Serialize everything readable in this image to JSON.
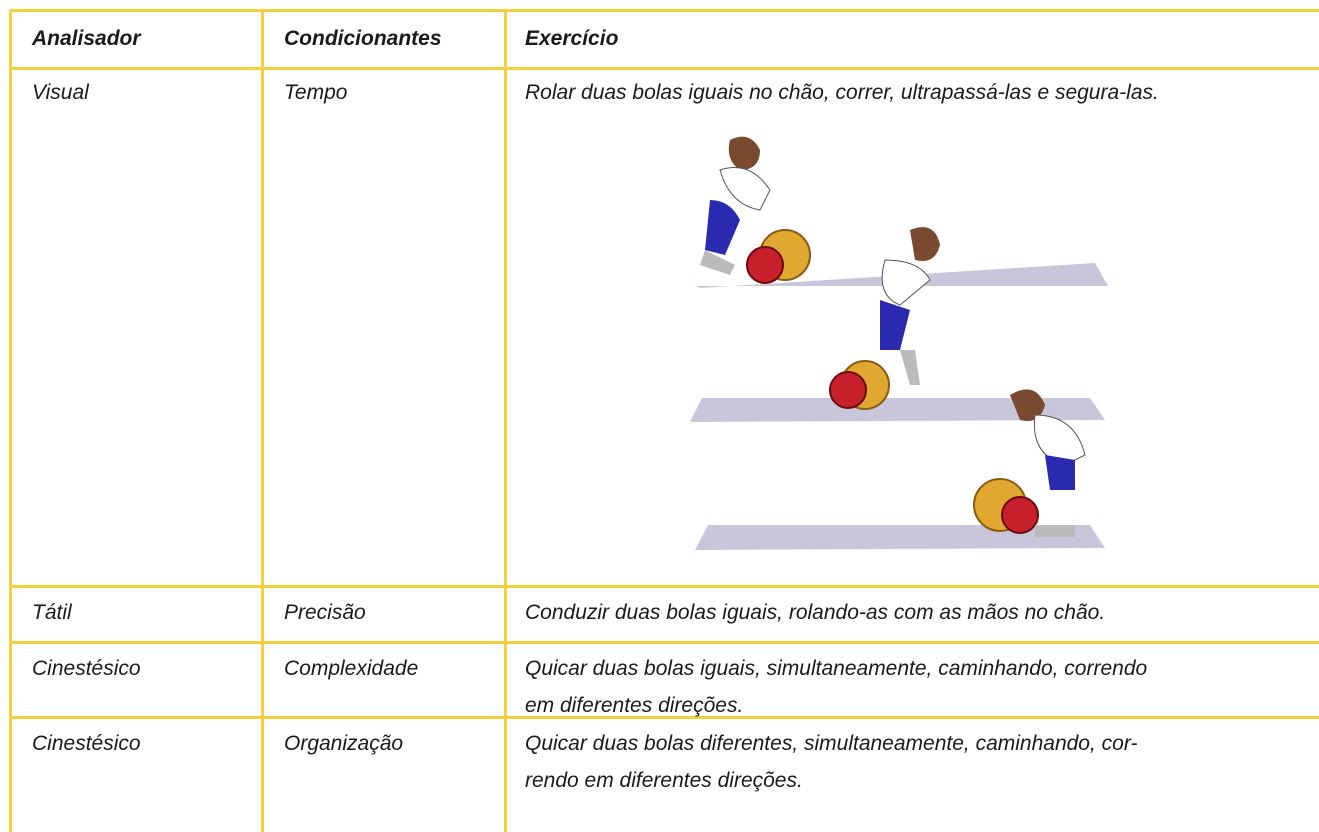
{
  "table": {
    "header": [
      "Analisador",
      "Condicionantes",
      "Exercício"
    ],
    "rows": [
      {
        "analisador": "Visual",
        "condicionante": "Tempo",
        "exercicio": [
          "Rolar duas bolas iguais no chão, correr, ultrapassá-las e segura-las."
        ]
      },
      {
        "analisador": "Tátil",
        "condicionante": "Precisão",
        "exercicio": [
          "Conduzir duas bolas iguais, rolando-as com as mãos no chão."
        ]
      },
      {
        "analisador": "Cinestésico",
        "condicionante": "Complexidade",
        "exercicio": [
          "Quicar duas bolas iguais, simultaneamente, caminhando, correndo",
          "em diferentes direções."
        ]
      },
      {
        "analisador": "Cinestésico",
        "condicionante": "Organização",
        "exercicio": [
          "Quicar duas bolas diferentes, simultaneamente, caminhando, cor-",
          "rendo em diferentes direções."
        ]
      }
    ]
  }
}
